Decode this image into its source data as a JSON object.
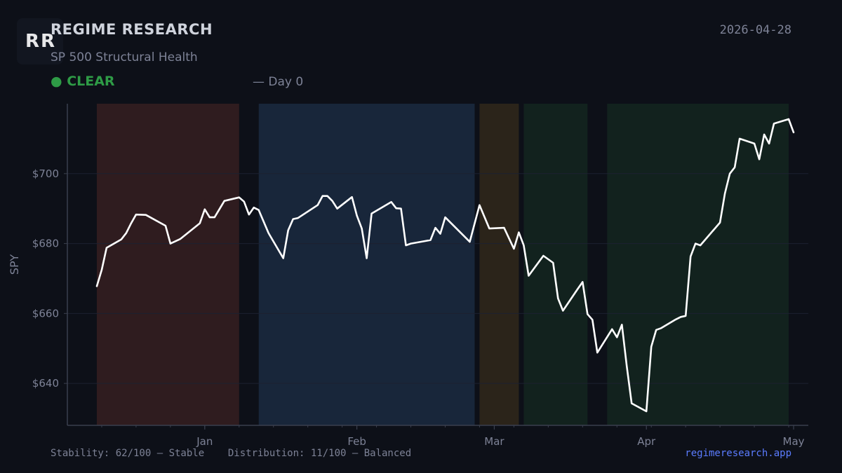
{
  "header": {
    "logo_text": "RR",
    "brand": "REGIME RESEARCH",
    "subtitle": "SP 500 Structural Health",
    "status_label": "● CLEAR",
    "status_day": "— Day 0",
    "date": "2026-04-28"
  },
  "footer": {
    "metrics": "Stability: 62/100 — Stable    Distribution: 11/100 — Balanced",
    "site": "regimeresearch.app"
  },
  "colors": {
    "background": "#0d1018",
    "line": "#ffffff",
    "status": "#2e9b46",
    "link": "#5b7cff"
  },
  "chart_data": {
    "type": "line",
    "title": "",
    "xlabel": "",
    "ylabel": "SPY",
    "ylim": [
      628,
      720
    ],
    "xlim": [
      "2025-12-10",
      "2026-05-01"
    ],
    "grid": true,
    "x_ticks": [
      {
        "date": "2026-01-01",
        "label": "Jan"
      },
      {
        "date": "2026-02-01",
        "label": "Feb"
      },
      {
        "date": "2026-03-01",
        "label": "Mar"
      },
      {
        "date": "2026-04-01",
        "label": "Apr"
      },
      {
        "date": "2026-05-01",
        "label": "May"
      }
    ],
    "y_ticks": [
      {
        "value": 640,
        "label": "$640"
      },
      {
        "value": 660,
        "label": "$660"
      },
      {
        "value": 680,
        "label": "$680"
      },
      {
        "value": 700,
        "label": "$700"
      }
    ],
    "regimes": [
      {
        "start": "2025-12-10",
        "end": "2026-01-08",
        "color": "#2f1c1f"
      },
      {
        "start": "2026-01-12",
        "end": "2026-02-25",
        "color": "#18263a"
      },
      {
        "start": "2026-02-26",
        "end": "2026-03-06",
        "color": "#2b241a"
      },
      {
        "start": "2026-03-07",
        "end": "2026-03-20",
        "color": "#12221e"
      },
      {
        "start": "2026-03-24",
        "end": "2026-04-30",
        "color": "#12221e"
      }
    ],
    "series": [
      {
        "color": "#ffffff",
        "points": [
          [
            "2025-12-10",
            667.8
          ],
          [
            "2025-12-11",
            672.5
          ],
          [
            "2025-12-12",
            678.8
          ],
          [
            "2025-12-15",
            681.2
          ],
          [
            "2025-12-16",
            683.0
          ],
          [
            "2025-12-17",
            685.8
          ],
          [
            "2025-12-18",
            688.3
          ],
          [
            "2025-12-20",
            688.2
          ],
          [
            "2025-12-24",
            685.1
          ],
          [
            "2025-12-25",
            680.0
          ],
          [
            "2025-12-27",
            681.3
          ],
          [
            "2025-12-31",
            685.8
          ],
          [
            "2026-01-01",
            689.8
          ],
          [
            "2026-01-02",
            687.5
          ],
          [
            "2026-01-03",
            687.5
          ],
          [
            "2026-01-05",
            692.2
          ],
          [
            "2026-01-08",
            693.2
          ],
          [
            "2026-01-09",
            692.0
          ],
          [
            "2026-01-10",
            688.3
          ],
          [
            "2026-01-11",
            690.3
          ],
          [
            "2026-01-12",
            689.6
          ],
          [
            "2026-01-14",
            683.0
          ],
          [
            "2026-01-17",
            675.8
          ],
          [
            "2026-01-18",
            683.8
          ],
          [
            "2026-01-19",
            687.0
          ],
          [
            "2026-01-20",
            687.3
          ],
          [
            "2026-01-24",
            691.0
          ],
          [
            "2026-01-25",
            693.6
          ],
          [
            "2026-01-26",
            693.6
          ],
          [
            "2026-01-27",
            692.2
          ],
          [
            "2026-01-28",
            690.0
          ],
          [
            "2026-01-31",
            693.3
          ],
          [
            "2026-02-01",
            688.0
          ],
          [
            "2026-02-02",
            684.3
          ],
          [
            "2026-02-03",
            675.8
          ],
          [
            "2026-02-04",
            688.6
          ],
          [
            "2026-02-08",
            691.9
          ],
          [
            "2026-02-09",
            690.1
          ],
          [
            "2026-02-10",
            690.0
          ],
          [
            "2026-02-11",
            679.5
          ],
          [
            "2026-02-12",
            680.0
          ],
          [
            "2026-02-16",
            681.0
          ],
          [
            "2026-02-17",
            684.5
          ],
          [
            "2026-02-18",
            682.8
          ],
          [
            "2026-02-19",
            687.5
          ],
          [
            "2026-02-24",
            680.5
          ],
          [
            "2026-02-26",
            691.0
          ],
          [
            "2026-02-28",
            684.3
          ],
          [
            "2026-03-03",
            684.5
          ],
          [
            "2026-03-05",
            678.5
          ],
          [
            "2026-03-06",
            683.2
          ],
          [
            "2026-03-07",
            679.5
          ],
          [
            "2026-03-08",
            670.8
          ],
          [
            "2026-03-11",
            676.5
          ],
          [
            "2026-03-13",
            674.5
          ],
          [
            "2026-03-14",
            664.3
          ],
          [
            "2026-03-15",
            660.8
          ],
          [
            "2026-03-18",
            667.0
          ],
          [
            "2026-03-19",
            669.0
          ],
          [
            "2026-03-20",
            659.8
          ],
          [
            "2026-03-21",
            658.2
          ],
          [
            "2026-03-22",
            648.8
          ],
          [
            "2026-03-25",
            655.5
          ],
          [
            "2026-03-26",
            653.2
          ],
          [
            "2026-03-27",
            656.8
          ],
          [
            "2026-03-28",
            645.0
          ],
          [
            "2026-03-29",
            634.3
          ],
          [
            "2026-04-01",
            632.0
          ],
          [
            "2026-04-02",
            650.5
          ],
          [
            "2026-04-03",
            655.3
          ],
          [
            "2026-04-04",
            655.8
          ],
          [
            "2026-04-07",
            658.3
          ],
          [
            "2026-04-08",
            659.0
          ],
          [
            "2026-04-09",
            659.3
          ],
          [
            "2026-04-10",
            676.3
          ],
          [
            "2026-04-11",
            680.0
          ],
          [
            "2026-04-12",
            679.5
          ],
          [
            "2026-04-16",
            686.0
          ],
          [
            "2026-04-17",
            694.3
          ],
          [
            "2026-04-18",
            700.0
          ],
          [
            "2026-04-19",
            701.8
          ],
          [
            "2026-04-20",
            710.0
          ],
          [
            "2026-04-23",
            708.6
          ],
          [
            "2026-04-24",
            704.1
          ],
          [
            "2026-04-25",
            711.2
          ],
          [
            "2026-04-26",
            708.6
          ],
          [
            "2026-04-27",
            714.3
          ],
          [
            "2026-04-30",
            715.6
          ],
          [
            "2026-05-01",
            711.8
          ]
        ]
      }
    ]
  }
}
